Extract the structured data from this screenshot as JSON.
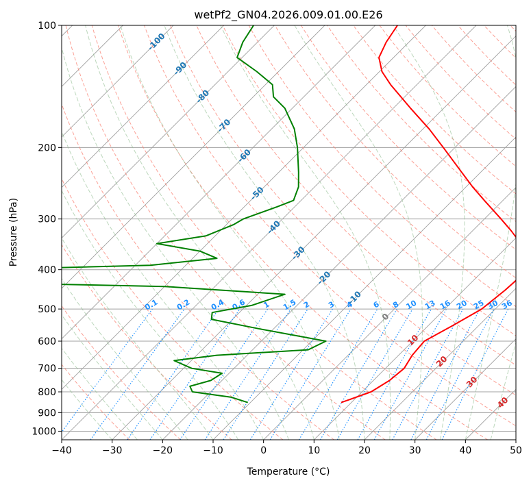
{
  "chart_data": {
    "type": "skew-t",
    "title": "wetPf2_GN04.2026.009.01.00.E26",
    "xlabel": "Temperature (°C)",
    "ylabel": "Pressure (hPa)",
    "xlim": [
      -40,
      50
    ],
    "ylim_hpa": [
      1050,
      100
    ],
    "log_pressure_axis": true,
    "grid": true,
    "x_ticks": [
      "−40",
      "−30",
      "−20",
      "−10",
      "0",
      "10",
      "20",
      "30",
      "40",
      "50"
    ],
    "y_ticks": [
      "100",
      "200",
      "300",
      "400",
      "500",
      "600",
      "700",
      "800",
      "900",
      "1000"
    ],
    "isotherm_labels": [
      "-100",
      "-90",
      "-80",
      "-70",
      "-60",
      "-50",
      "-40",
      "-30",
      "-20",
      "-10"
    ],
    "mixing_ratio_labels": [
      "0.1",
      "0.2",
      "0.4",
      "0.6",
      "1",
      "1.5",
      "2",
      "3",
      "4",
      "6",
      "8",
      "10",
      "13",
      "16",
      "20",
      "25",
      "30",
      "36"
    ],
    "moist_adiabat_labels": [
      "0",
      "10",
      "20",
      "30",
      "40"
    ],
    "colors": {
      "temperature": "#ff0000",
      "dewpoint": "#008000",
      "isotherm": "#a0a0a0",
      "dry_adiabat": "#fa8072",
      "moist_adiabat": "#8fbc8f",
      "mixing_ratio": "#1e90ff",
      "isotherm_label": "#1f77b4",
      "moist_label": "#d62728"
    },
    "series": [
      {
        "name": "Temperature",
        "pressure_hpa": [
          850,
          800,
          750,
          700,
          650,
          600,
          550,
          500,
          450,
          420,
          400,
          375,
          350,
          320,
          300,
          270,
          250,
          230,
          200,
          180,
          160,
          140,
          130,
          120,
          110,
          100
        ],
        "temp_c": [
          8.0,
          11.8,
          13.2,
          13.7,
          12.7,
          12.3,
          14.8,
          17.3,
          18.2,
          18.5,
          16.5,
          15.3,
          13.0,
          7.5,
          3.3,
          -3.7,
          -8.7,
          -13.8,
          -22.3,
          -28.8,
          -36.6,
          -45.2,
          -49.5,
          -52.9,
          -54.5,
          -55.6
        ]
      },
      {
        "name": "Dewpoint",
        "pressure_hpa": [
          850,
          825,
          800,
          775,
          750,
          720,
          700,
          670,
          650,
          630,
          600,
          560,
          530,
          510,
          490,
          460,
          440,
          430,
          400,
          390,
          375,
          360,
          345,
          330,
          310,
          300,
          280,
          270,
          250,
          230,
          200,
          180,
          160,
          150,
          140,
          130,
          120,
          110,
          100
        ],
        "dewp_c": [
          -10.5,
          -14.8,
          -23.6,
          -25.2,
          -22.2,
          -21.4,
          -28.4,
          -33.4,
          -26.0,
          -9.0,
          -7.2,
          -22.6,
          -34.2,
          -35.4,
          -29.0,
          -24.6,
          -50.0,
          -90.0,
          -90.0,
          -57.0,
          -45.2,
          -50.0,
          -60.0,
          -51.8,
          -48.6,
          -47.8,
          -43.5,
          -41.5,
          -43.2,
          -46.1,
          -51.2,
          -55.5,
          -61.5,
          -66.0,
          -68.6,
          -74.3,
          -81.0,
          -82.9,
          -84.1
        ]
      }
    ]
  }
}
